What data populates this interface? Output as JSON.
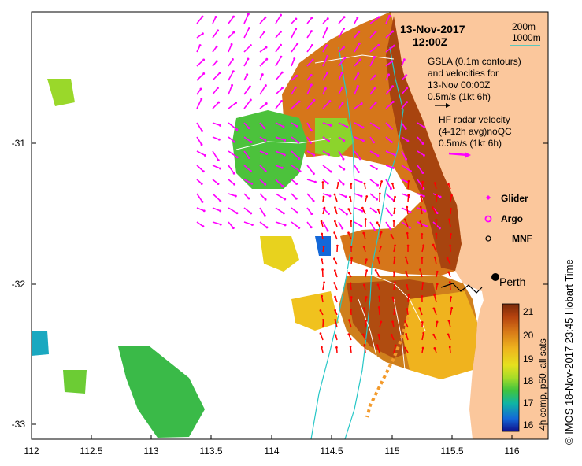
{
  "header": {
    "date": "13-Nov-2017",
    "time": "12:00Z"
  },
  "scale_legend": {
    "line1": "200m",
    "line2": "1000m",
    "color": "#27c7c7"
  },
  "gsla_legend": {
    "line1": "GSLA (0.1m contours)",
    "line2": "and velocities for",
    "line3": "13-Nov 00:00Z",
    "line4": "0.5m/s (1kt 6h)"
  },
  "hf_legend": {
    "line1": "HF radar velocity",
    "line2": "(4-12h avg)noQC",
    "line3": "0.5m/s (1kt 6h)"
  },
  "symbol_legend": [
    {
      "label": "Glider",
      "color": "#ff00ff",
      "icon": "diamond-icon"
    },
    {
      "label": "Argo",
      "color": "#ff00ff",
      "icon": "star-icon"
    },
    {
      "label": "MNF",
      "color": "#000000",
      "icon": "circle-icon"
    }
  ],
  "city": {
    "label": "Perth"
  },
  "colorbar": {
    "title": "4h comp, p50, all sats",
    "ticks": [
      "21",
      "20",
      "19",
      "18",
      "17",
      "16"
    ],
    "stops": [
      "#7a2a0a",
      "#b5420e",
      "#d87a18",
      "#eeb41e",
      "#e6e01e",
      "#a6dc28",
      "#3fc43f",
      "#10b4a4",
      "#1468d8",
      "#10108a"
    ]
  },
  "x_axis": {
    "ticks": [
      "112",
      "112.5",
      "113",
      "113.5",
      "114",
      "114.5",
      "115",
      "115.5",
      "116"
    ]
  },
  "y_axis": {
    "ticks": [
      "-31",
      "-32",
      "-33"
    ]
  },
  "credit": "© IMOS 18-Nov-2017 23:45 Hobart Time",
  "colors": {
    "land": "#fbc79c",
    "contour": "#27c7c7",
    "gsla_arrow": "#ff00ff",
    "hf_arrow": "#ff0000",
    "glider_track": "#f39a2b"
  }
}
